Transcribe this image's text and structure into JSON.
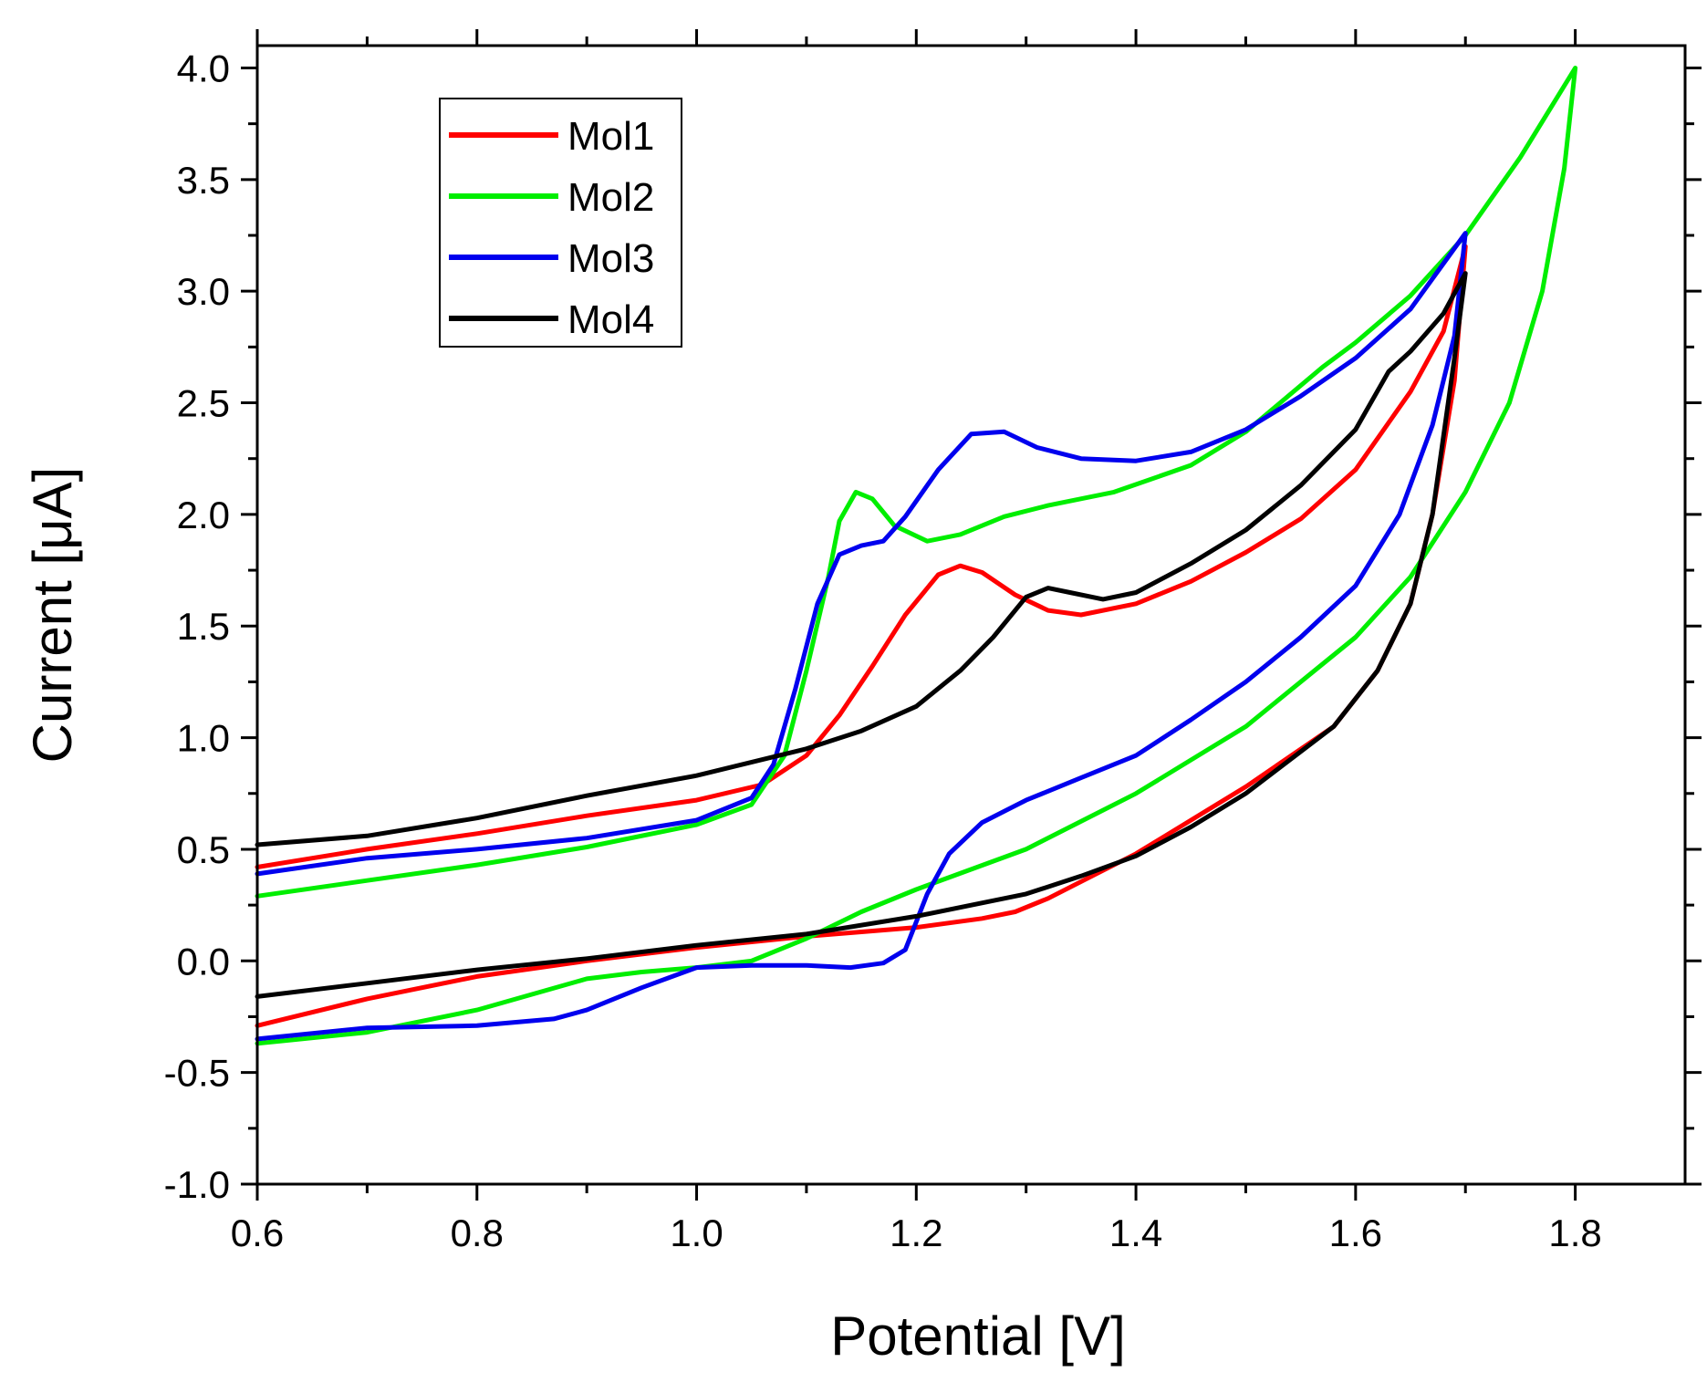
{
  "chart_data": {
    "type": "line",
    "title": "",
    "xlabel": "Potential [V]",
    "ylabel": "Current [μA]",
    "xlim": [
      0.6,
      1.9
    ],
    "ylim": [
      -1.0,
      4.1
    ],
    "xticks": [
      0.6,
      0.8,
      1.0,
      1.2,
      1.4,
      1.6,
      1.8
    ],
    "xtick_labels": [
      "0.6",
      "0.8",
      "1.0",
      "1.2",
      "1.4",
      "1.6",
      "1.8"
    ],
    "yticks": [
      -1.0,
      -0.5,
      0.0,
      0.5,
      1.0,
      1.5,
      2.0,
      2.5,
      3.0,
      3.5,
      4.0
    ],
    "ytick_labels": [
      "-1.0",
      "-0.5",
      "0.0",
      "0.5",
      "1.0",
      "1.5",
      "2.0",
      "2.5",
      "3.0",
      "3.5",
      "4.0"
    ],
    "grid": false,
    "legend_position": "top-left",
    "series": [
      {
        "name": "Mol1",
        "color": "#ff0000",
        "points": [
          [
            0.6,
            0.42
          ],
          [
            0.7,
            0.5
          ],
          [
            0.8,
            0.57
          ],
          [
            0.9,
            0.65
          ],
          [
            1.0,
            0.72
          ],
          [
            1.06,
            0.79
          ],
          [
            1.1,
            0.92
          ],
          [
            1.13,
            1.1
          ],
          [
            1.16,
            1.32
          ],
          [
            1.19,
            1.55
          ],
          [
            1.22,
            1.73
          ],
          [
            1.24,
            1.77
          ],
          [
            1.26,
            1.74
          ],
          [
            1.29,
            1.64
          ],
          [
            1.32,
            1.57
          ],
          [
            1.35,
            1.55
          ],
          [
            1.4,
            1.6
          ],
          [
            1.45,
            1.7
          ],
          [
            1.5,
            1.83
          ],
          [
            1.55,
            1.98
          ],
          [
            1.6,
            2.2
          ],
          [
            1.65,
            2.55
          ],
          [
            1.68,
            2.82
          ],
          [
            1.7,
            3.2
          ],
          [
            1.69,
            2.6
          ],
          [
            1.67,
            2.0
          ],
          [
            1.65,
            1.6
          ],
          [
            1.62,
            1.3
          ],
          [
            1.58,
            1.05
          ],
          [
            1.5,
            0.78
          ],
          [
            1.45,
            0.63
          ],
          [
            1.4,
            0.48
          ],
          [
            1.36,
            0.38
          ],
          [
            1.32,
            0.28
          ],
          [
            1.29,
            0.22
          ],
          [
            1.26,
            0.19
          ],
          [
            1.2,
            0.15
          ],
          [
            1.1,
            0.11
          ],
          [
            1.0,
            0.06
          ],
          [
            0.9,
            0.0
          ],
          [
            0.8,
            -0.07
          ],
          [
            0.7,
            -0.17
          ],
          [
            0.6,
            -0.29
          ]
        ]
      },
      {
        "name": "Mol2",
        "color": "#00ee00",
        "points": [
          [
            0.6,
            0.29
          ],
          [
            0.7,
            0.36
          ],
          [
            0.8,
            0.43
          ],
          [
            0.9,
            0.51
          ],
          [
            1.0,
            0.61
          ],
          [
            1.05,
            0.7
          ],
          [
            1.08,
            0.92
          ],
          [
            1.1,
            1.3
          ],
          [
            1.12,
            1.72
          ],
          [
            1.13,
            1.97
          ],
          [
            1.145,
            2.1
          ],
          [
            1.16,
            2.07
          ],
          [
            1.18,
            1.95
          ],
          [
            1.21,
            1.88
          ],
          [
            1.24,
            1.91
          ],
          [
            1.28,
            1.99
          ],
          [
            1.32,
            2.04
          ],
          [
            1.38,
            2.1
          ],
          [
            1.45,
            2.22
          ],
          [
            1.5,
            2.37
          ],
          [
            1.57,
            2.66
          ],
          [
            1.6,
            2.77
          ],
          [
            1.65,
            2.98
          ],
          [
            1.7,
            3.25
          ],
          [
            1.75,
            3.6
          ],
          [
            1.8,
            4.0
          ],
          [
            1.79,
            3.55
          ],
          [
            1.77,
            3.0
          ],
          [
            1.74,
            2.5
          ],
          [
            1.7,
            2.1
          ],
          [
            1.65,
            1.72
          ],
          [
            1.6,
            1.45
          ],
          [
            1.5,
            1.05
          ],
          [
            1.4,
            0.75
          ],
          [
            1.3,
            0.5
          ],
          [
            1.2,
            0.32
          ],
          [
            1.15,
            0.22
          ],
          [
            1.1,
            0.1
          ],
          [
            1.05,
            0.0
          ],
          [
            1.0,
            -0.03
          ],
          [
            0.95,
            -0.05
          ],
          [
            0.9,
            -0.08
          ],
          [
            0.85,
            -0.15
          ],
          [
            0.8,
            -0.22
          ],
          [
            0.7,
            -0.32
          ],
          [
            0.6,
            -0.37
          ]
        ]
      },
      {
        "name": "Mol3",
        "color": "#0000ee",
        "points": [
          [
            0.6,
            0.39
          ],
          [
            0.7,
            0.46
          ],
          [
            0.8,
            0.5
          ],
          [
            0.9,
            0.55
          ],
          [
            1.0,
            0.63
          ],
          [
            1.05,
            0.73
          ],
          [
            1.07,
            0.88
          ],
          [
            1.09,
            1.22
          ],
          [
            1.11,
            1.6
          ],
          [
            1.13,
            1.82
          ],
          [
            1.15,
            1.86
          ],
          [
            1.17,
            1.88
          ],
          [
            1.19,
            1.99
          ],
          [
            1.22,
            2.2
          ],
          [
            1.25,
            2.36
          ],
          [
            1.28,
            2.37
          ],
          [
            1.31,
            2.3
          ],
          [
            1.35,
            2.25
          ],
          [
            1.4,
            2.24
          ],
          [
            1.45,
            2.28
          ],
          [
            1.5,
            2.38
          ],
          [
            1.55,
            2.53
          ],
          [
            1.6,
            2.7
          ],
          [
            1.65,
            2.92
          ],
          [
            1.7,
            3.26
          ],
          [
            1.69,
            2.8
          ],
          [
            1.67,
            2.4
          ],
          [
            1.64,
            2.0
          ],
          [
            1.6,
            1.68
          ],
          [
            1.55,
            1.45
          ],
          [
            1.5,
            1.25
          ],
          [
            1.45,
            1.08
          ],
          [
            1.4,
            0.92
          ],
          [
            1.35,
            0.82
          ],
          [
            1.3,
            0.72
          ],
          [
            1.26,
            0.62
          ],
          [
            1.23,
            0.48
          ],
          [
            1.21,
            0.3
          ],
          [
            1.19,
            0.05
          ],
          [
            1.17,
            -0.01
          ],
          [
            1.14,
            -0.03
          ],
          [
            1.1,
            -0.02
          ],
          [
            1.05,
            -0.02
          ],
          [
            1.0,
            -0.03
          ],
          [
            0.95,
            -0.12
          ],
          [
            0.9,
            -0.22
          ],
          [
            0.87,
            -0.26
          ],
          [
            0.8,
            -0.29
          ],
          [
            0.7,
            -0.3
          ],
          [
            0.6,
            -0.35
          ]
        ]
      },
      {
        "name": "Mol4",
        "color": "#000000",
        "points": [
          [
            0.6,
            0.52
          ],
          [
            0.7,
            0.56
          ],
          [
            0.8,
            0.64
          ],
          [
            0.9,
            0.74
          ],
          [
            1.0,
            0.83
          ],
          [
            1.1,
            0.95
          ],
          [
            1.15,
            1.03
          ],
          [
            1.2,
            1.14
          ],
          [
            1.24,
            1.3
          ],
          [
            1.27,
            1.45
          ],
          [
            1.3,
            1.63
          ],
          [
            1.32,
            1.67
          ],
          [
            1.34,
            1.65
          ],
          [
            1.37,
            1.62
          ],
          [
            1.4,
            1.65
          ],
          [
            1.45,
            1.78
          ],
          [
            1.5,
            1.93
          ],
          [
            1.55,
            2.13
          ],
          [
            1.6,
            2.38
          ],
          [
            1.63,
            2.64
          ],
          [
            1.65,
            2.73
          ],
          [
            1.68,
            2.9
          ],
          [
            1.7,
            3.08
          ],
          [
            1.69,
            2.7
          ],
          [
            1.67,
            2.0
          ],
          [
            1.65,
            1.6
          ],
          [
            1.62,
            1.3
          ],
          [
            1.58,
            1.05
          ],
          [
            1.5,
            0.75
          ],
          [
            1.45,
            0.6
          ],
          [
            1.4,
            0.47
          ],
          [
            1.35,
            0.38
          ],
          [
            1.3,
            0.3
          ],
          [
            1.2,
            0.2
          ],
          [
            1.1,
            0.12
          ],
          [
            1.0,
            0.07
          ],
          [
            0.9,
            0.01
          ],
          [
            0.8,
            -0.04
          ],
          [
            0.7,
            -0.1
          ],
          [
            0.6,
            -0.16
          ]
        ]
      }
    ]
  }
}
